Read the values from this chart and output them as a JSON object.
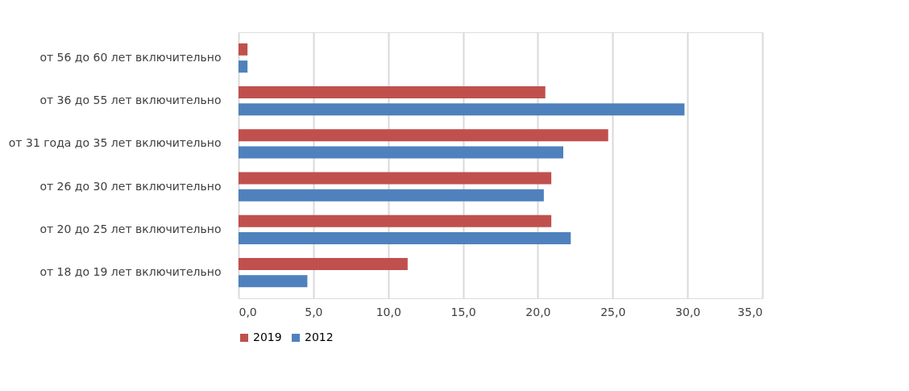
{
  "chart_data": {
    "type": "bar",
    "orientation": "horizontal",
    "categories": [
      "от 56 до 60 лет включительно",
      "от 36 до 55 лет включительно",
      "от 31 года до 35 лет включительно",
      "от 26 до 30 лет включительно",
      "от 20 до 25 лет включительно",
      "от 18 до 19 лет включительно"
    ],
    "series": [
      {
        "name": "2019",
        "color": "#c0504d",
        "values": [
          0.6,
          20.5,
          24.7,
          20.9,
          20.9,
          11.3
        ]
      },
      {
        "name": "2012",
        "color": "#4f81bd",
        "values": [
          0.6,
          29.8,
          21.7,
          20.4,
          22.2,
          4.6
        ]
      }
    ],
    "xlim": [
      0,
      35
    ],
    "xticks": [
      {
        "value": 0,
        "label": "0,0"
      },
      {
        "value": 5,
        "label": "5,0"
      },
      {
        "value": 10,
        "label": "10,0"
      },
      {
        "value": 15,
        "label": "15,0"
      },
      {
        "value": 20,
        "label": "20,0"
      },
      {
        "value": 25,
        "label": "25,0"
      },
      {
        "value": 30,
        "label": "30,0"
      },
      {
        "value": 35,
        "label": "35,0"
      }
    ],
    "grid": "x",
    "legend": "bottom"
  }
}
